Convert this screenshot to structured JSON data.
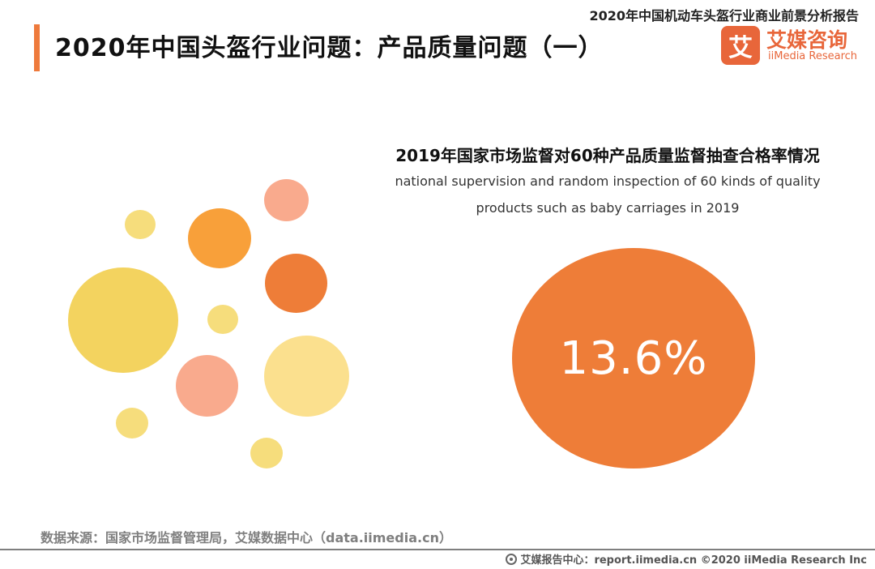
{
  "header": {
    "report_title": "2020年中国机动车头盔行业商业前景分析报告",
    "page_title": "2020年中国头盔行业问题：产品质量问题（一）"
  },
  "logo": {
    "mark": "艾",
    "name_cn": "艾媒咨询",
    "name_en": "iiMedia Research",
    "color": "#e8663a"
  },
  "decoration": {
    "bubble_colors": [
      "#f3d35f",
      "#f8a03a",
      "#f9aa8d",
      "#ee7d38",
      "#fbe08e",
      "#f6dd7c"
    ]
  },
  "chart": {
    "title": "2019年国家市场监督对60种产品质量监督抽查合格率情况",
    "subtitle_line1": "national supervision and random inspection of 60 kinds of quality",
    "subtitle_line2": "products such as baby carriages  in 2019",
    "value_label": "13.6%"
  },
  "chart_data": {
    "type": "single-value",
    "title": "2019年国家市场监督对60种产品质量监督抽查合格率情况",
    "value": 13.6,
    "unit": "%",
    "color": "#ee7d38"
  },
  "footer": {
    "source": "数据来源：国家市场监督管理局，艾媒数据中心（data.iimedia.cn）",
    "site": "艾媒报告中心：report.iimedia.cn  ©2020  iiMedia Research  Inc"
  }
}
